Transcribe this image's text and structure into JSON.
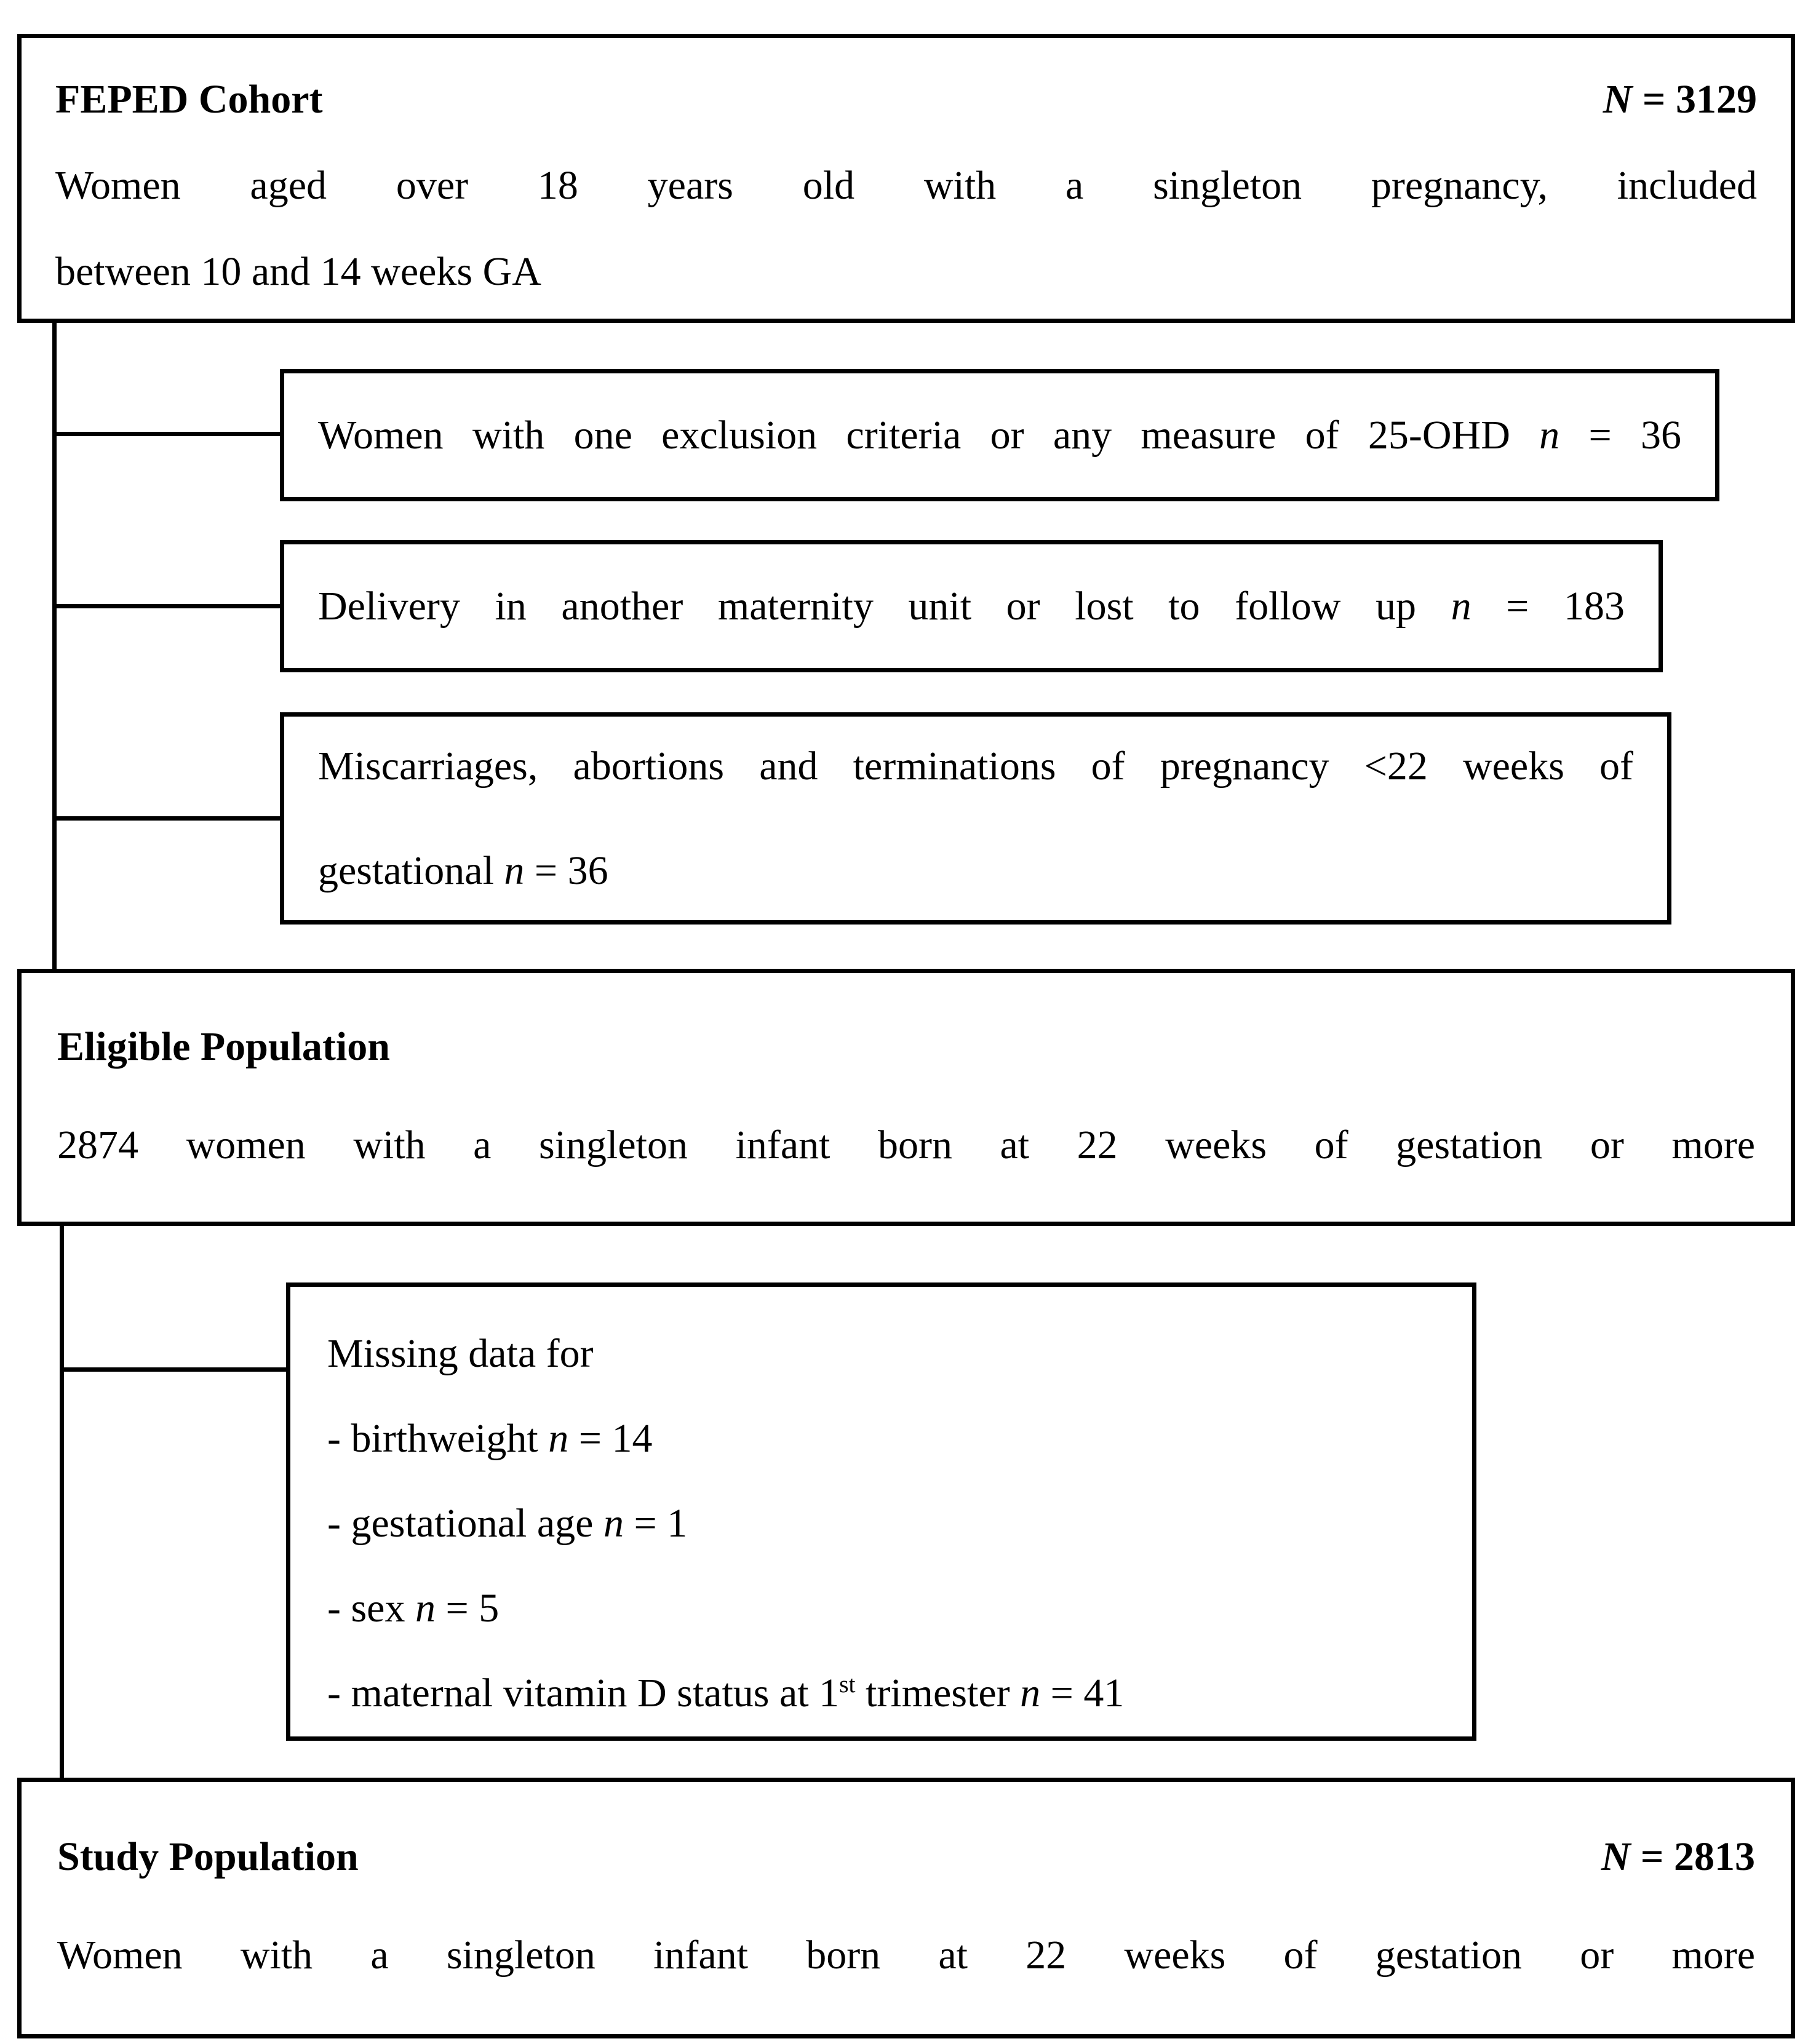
{
  "figure": {
    "feped": {
      "title": "FEPED Cohort",
      "n_label": "N",
      "n_value": " = 3129",
      "body_line1": "Women aged over 18 years old with a singleton pregnancy, included",
      "body_line2": "between 10 and 14 weeks GA"
    },
    "exclusion1": {
      "prefix": "Women with one exclusion criteria or any measure of 25-OHD ",
      "n_label": "n",
      "suffix": " = 36"
    },
    "exclusion2": {
      "prefix": "Delivery in another maternity unit or lost to follow up ",
      "n_label": "n",
      "suffix": " = 183"
    },
    "exclusion3": {
      "line1": "Miscarriages, abortions and terminations of pregnancy <22 weeks of",
      "line2_prefix": "gestational ",
      "n_label": "n",
      "suffix": " = 36"
    },
    "eligible": {
      "title": "Eligible Population",
      "body": "2874 women with a singleton infant born at 22 weeks of gestation or more"
    },
    "missing": {
      "header": "Missing data for",
      "items": [
        {
          "prefix": "- birthweight ",
          "n": "n",
          "suffix": " = 14"
        },
        {
          "prefix": "- gestational age ",
          "n": "n",
          "suffix": " = 1"
        },
        {
          "prefix": "- sex ",
          "n": "n",
          "suffix": " = 5"
        },
        {
          "prefix": "- maternal vitamin D status at 1",
          "sup": "st",
          "mid": " trimester ",
          "n": "n",
          "suffix": " = 41"
        }
      ]
    },
    "study": {
      "title": "Study Population",
      "n_label": "N",
      "n_value": " = 2813",
      "body": "Women with a singleton infant born at 22 weeks of gestation or more"
    }
  }
}
